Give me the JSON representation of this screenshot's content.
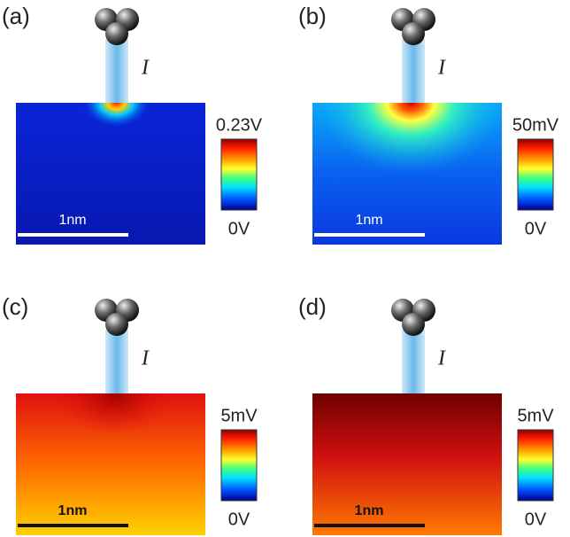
{
  "panels": [
    {
      "label": "(a)",
      "current": "I",
      "scale_bar": "1nm",
      "colorbar_max": "0.23V",
      "colorbar_min": "0V"
    },
    {
      "label": "(b)",
      "current": "I",
      "scale_bar": "1nm",
      "colorbar_max": "50mV",
      "colorbar_min": "0V"
    },
    {
      "label": "(c)",
      "current": "I",
      "scale_bar": "1nm",
      "colorbar_max": "5mV",
      "colorbar_min": "0V"
    },
    {
      "label": "(d)",
      "current": "I",
      "scale_bar": "1nm",
      "colorbar_max": "5mV",
      "colorbar_min": "0V"
    }
  ]
}
